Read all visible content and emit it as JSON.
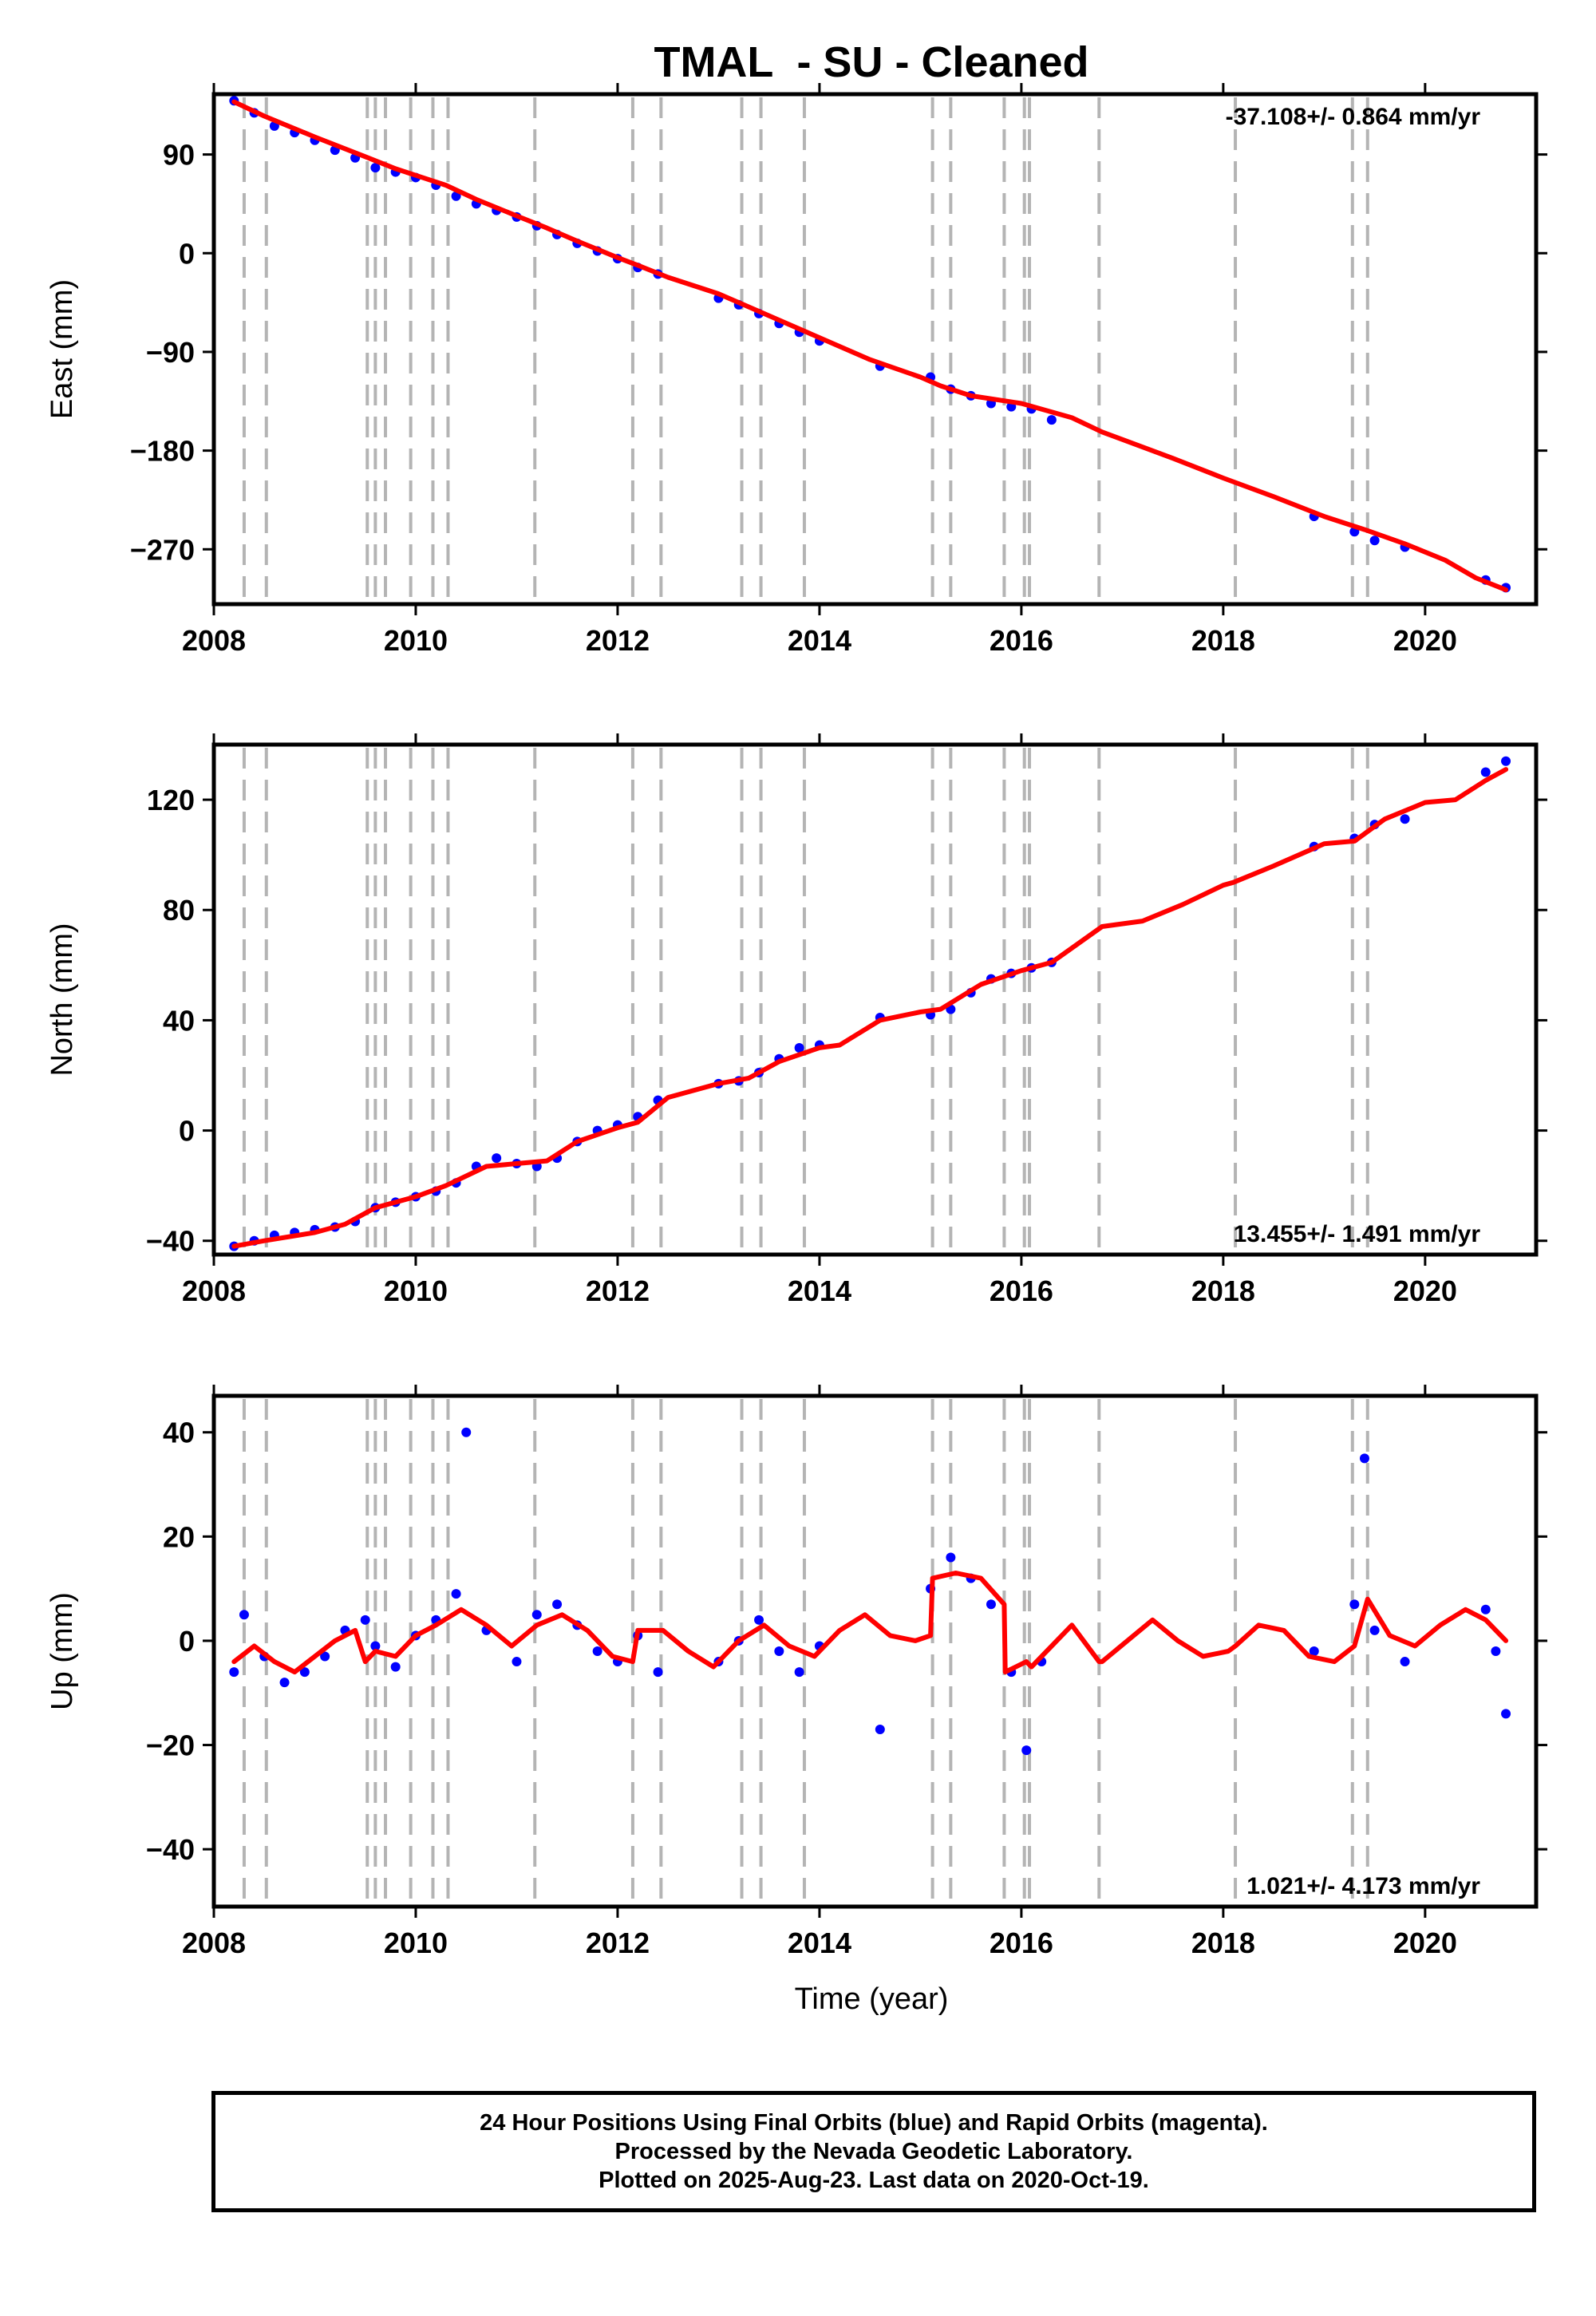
{
  "figure_title": "TMAL  - SU - Cleaned",
  "x_axis_label": "Time (year)",
  "caption": {
    "line1": "24 Hour Positions Using Final Orbits (blue) and Rapid Orbits (magenta).",
    "line2": "Processed by the Nevada Geodetic Laboratory.",
    "line3": "Plotted on 2025-Aug-23. Last data on 2020-Oct-19."
  },
  "colors": {
    "final_orbits": "#0000ff",
    "model_fit": "#ff0000",
    "event_lines": "#b4b4b4",
    "axes": "#000000"
  },
  "event_lines_x": [
    2008.3,
    2008.52,
    2009.52,
    2009.6,
    2009.7,
    2009.95,
    2010.17,
    2010.32,
    2011.18,
    2012.15,
    2012.43,
    2013.23,
    2013.42,
    2013.85,
    2015.12,
    2015.3,
    2015.83,
    2016.03,
    2016.08,
    2016.77,
    2018.12,
    2019.28,
    2019.43
  ],
  "chart_data": [
    {
      "type": "scatter",
      "title": "",
      "xlabel": "",
      "ylabel": "East (mm)",
      "xlim": [
        2008.0,
        2021.1
      ],
      "ylim": [
        -320,
        145
      ],
      "xticks": [
        "2008",
        "2010",
        "2012",
        "2014",
        "2016",
        "2018",
        "2020"
      ],
      "yticks": [
        "90",
        "0",
        "−90",
        "−180",
        "−270"
      ],
      "ytick_values": [
        90,
        0,
        -90,
        -180,
        -270
      ],
      "rate_label": "-37.108+/- 0.864 mm/yr",
      "rate_position": "top-right",
      "grid": false,
      "series": [
        {
          "name": "Final Orbits",
          "style": "points",
          "x": [
            2008.2,
            2008.4,
            2008.6,
            2008.8,
            2009.0,
            2009.2,
            2009.4,
            2009.6,
            2009.8,
            2010.0,
            2010.2,
            2010.4,
            2010.6,
            2010.8,
            2011.0,
            2011.2,
            2011.4,
            2011.6,
            2011.8,
            2012.0,
            2012.2,
            2012.4,
            2013.0,
            2013.2,
            2013.4,
            2013.6,
            2013.8,
            2014.0,
            2014.6,
            2015.1,
            2015.3,
            2015.5,
            2015.7,
            2015.9,
            2016.1,
            2016.3,
            2018.9,
            2019.3,
            2019.5,
            2019.8,
            2020.6,
            2020.8
          ],
          "y": [
            139,
            128,
            116,
            110,
            103,
            94,
            87,
            78,
            74,
            69,
            62,
            52,
            45,
            39,
            33,
            25,
            17,
            9,
            2,
            -5,
            -13,
            -19,
            -41,
            -47,
            -55,
            -64,
            -72,
            -80,
            -103,
            -113,
            -124,
            -130,
            -137,
            -140,
            -142,
            -152,
            -240,
            -254,
            -262,
            -268,
            -298,
            -305
          ]
        },
        {
          "name": "Model",
          "style": "line",
          "x": [
            2008.2,
            2008.5,
            2009.0,
            2009.5,
            2009.8,
            2010.0,
            2010.3,
            2010.6,
            2011.0,
            2011.3,
            2011.6,
            2012.0,
            2012.2,
            2012.5,
            2013.0,
            2013.5,
            2014.0,
            2014.5,
            2015.0,
            2015.2,
            2015.5,
            2016.0,
            2016.5,
            2016.8,
            2017.5,
            2018.0,
            2018.5,
            2019.0,
            2019.4,
            2019.8,
            2020.2,
            2020.5,
            2020.8
          ],
          "y": [
            138,
            125,
            106,
            88,
            77,
            71,
            62,
            49,
            34,
            23,
            11,
            -4,
            -11,
            -22,
            -37,
            -57,
            -77,
            -97,
            -113,
            -121,
            -130,
            -137,
            -150,
            -163,
            -187,
            -205,
            -222,
            -240,
            -252,
            -265,
            -280,
            -296,
            -307
          ]
        }
      ]
    },
    {
      "type": "scatter",
      "title": "",
      "xlabel": "",
      "ylabel": "North (mm)",
      "xlim": [
        2008.0,
        2021.1
      ],
      "ylim": [
        -45,
        140
      ],
      "xticks": [
        "2008",
        "2010",
        "2012",
        "2014",
        "2016",
        "2018",
        "2020"
      ],
      "yticks": [
        "120",
        "80",
        "40",
        "0",
        "−40"
      ],
      "ytick_values": [
        120,
        80,
        40,
        0,
        -40
      ],
      "rate_label": "13.455+/- 1.491 mm/yr",
      "rate_position": "bottom-right",
      "grid": false,
      "series": [
        {
          "name": "Final Orbits",
          "style": "points",
          "x": [
            2008.2,
            2008.4,
            2008.6,
            2008.8,
            2009.0,
            2009.2,
            2009.4,
            2009.6,
            2009.8,
            2010.0,
            2010.2,
            2010.4,
            2010.6,
            2010.8,
            2011.0,
            2011.2,
            2011.4,
            2011.6,
            2011.8,
            2012.0,
            2012.2,
            2012.4,
            2013.0,
            2013.2,
            2013.4,
            2013.6,
            2013.8,
            2014.0,
            2014.6,
            2015.1,
            2015.3,
            2015.5,
            2015.7,
            2015.9,
            2016.1,
            2016.3,
            2018.9,
            2019.3,
            2019.5,
            2019.8,
            2020.6,
            2020.8
          ],
          "y": [
            -42,
            -40,
            -38,
            -37,
            -36,
            -35,
            -33,
            -28,
            -26,
            -24,
            -22,
            -19,
            -13,
            -10,
            -12,
            -13,
            -10,
            -4,
            0,
            2,
            5,
            11,
            17,
            18,
            21,
            26,
            30,
            31,
            41,
            42,
            44,
            50,
            55,
            57,
            59,
            61,
            103,
            106,
            111,
            113,
            130,
            134
          ]
        },
        {
          "name": "Model",
          "style": "line",
          "x": [
            2008.2,
            2008.5,
            2009.0,
            2009.3,
            2009.6,
            2010.0,
            2010.3,
            2010.7,
            2011.0,
            2011.3,
            2011.6,
            2012.0,
            2012.2,
            2012.5,
            2013.0,
            2013.3,
            2013.6,
            2014.0,
            2014.2,
            2014.6,
            2015.0,
            2015.2,
            2015.6,
            2016.0,
            2016.3,
            2016.8,
            2017.2,
            2017.6,
            2018.0,
            2018.1,
            2018.5,
            2019.0,
            2019.3,
            2019.6,
            2020.0,
            2020.3,
            2020.6,
            2020.8
          ],
          "y": [
            -42,
            -40,
            -37,
            -34,
            -28,
            -24,
            -20,
            -13,
            -12,
            -11,
            -4,
            1,
            3,
            12,
            17,
            19,
            25,
            30,
            31,
            40,
            43,
            44,
            53,
            58,
            61,
            74,
            76,
            82,
            89,
            90,
            96,
            104,
            105,
            113,
            119,
            120,
            127,
            131
          ]
        }
      ]
    },
    {
      "type": "scatter",
      "title": "",
      "xlabel": "Time (year)",
      "ylabel": "Up (mm)",
      "xlim": [
        2008.0,
        2021.1
      ],
      "ylim": [
        -51,
        47
      ],
      "xticks": [
        "2008",
        "2010",
        "2012",
        "2014",
        "2016",
        "2018",
        "2020"
      ],
      "yticks": [
        "40",
        "20",
        "0",
        "−20",
        "−40"
      ],
      "ytick_values": [
        40,
        20,
        0,
        -20,
        -40
      ],
      "rate_label": "1.021+/- 4.173 mm/yr",
      "rate_position": "bottom-right",
      "grid": false,
      "series": [
        {
          "name": "Final Orbits",
          "style": "points",
          "x": [
            2008.2,
            2008.3,
            2008.5,
            2008.7,
            2008.9,
            2009.1,
            2009.3,
            2009.5,
            2009.6,
            2009.8,
            2010.0,
            2010.2,
            2010.4,
            2010.5,
            2010.7,
            2011.0,
            2011.2,
            2011.4,
            2011.6,
            2011.8,
            2012.0,
            2012.2,
            2012.4,
            2013.0,
            2013.2,
            2013.4,
            2013.6,
            2013.8,
            2014.0,
            2014.6,
            2015.1,
            2015.3,
            2015.5,
            2015.7,
            2015.9,
            2016.05,
            2016.2,
            2018.9,
            2019.3,
            2019.4,
            2019.5,
            2019.8,
            2020.6,
            2020.7,
            2020.8
          ],
          "y": [
            -6,
            5,
            -3,
            -8,
            -6,
            -3,
            2,
            4,
            -1,
            -5,
            1,
            4,
            9,
            40,
            2,
            -4,
            5,
            7,
            3,
            -2,
            -4,
            1,
            -6,
            -4,
            0,
            4,
            -2,
            -6,
            -1,
            -17,
            10,
            16,
            12,
            7,
            -6,
            -21,
            -4,
            -2,
            7,
            35,
            2,
            -4,
            6,
            -2,
            -14
          ]
        },
        {
          "name": "Model",
          "style": "line",
          "x": [
            2008.2,
            2008.4,
            2008.6,
            2008.8,
            2009.0,
            2009.2,
            2009.4,
            2009.5,
            2009.6,
            2009.8,
            2010.0,
            2010.2,
            2010.45,
            2010.7,
            2010.95,
            2011.2,
            2011.45,
            2011.7,
            2011.95,
            2012.15,
            2012.2,
            2012.45,
            2012.7,
            2012.95,
            2013.2,
            2013.45,
            2013.7,
            2013.95,
            2014.2,
            2014.45,
            2014.7,
            2014.95,
            2015.1,
            2015.12,
            2015.35,
            2015.6,
            2015.83,
            2015.84,
            2016.05,
            2016.1,
            2016.3,
            2016.5,
            2016.77,
            2016.8,
            2017.05,
            2017.3,
            2017.55,
            2017.8,
            2018.05,
            2018.12,
            2018.35,
            2018.6,
            2018.85,
            2019.1,
            2019.3,
            2019.43,
            2019.65,
            2019.9,
            2020.15,
            2020.4,
            2020.6,
            2020.8
          ],
          "y": [
            -4,
            -1,
            -4,
            -6,
            -3,
            0,
            2,
            -4,
            -2,
            -3,
            1,
            3,
            6,
            3,
            -1,
            3,
            5,
            2,
            -3,
            -4,
            2,
            2,
            -2,
            -5,
            0,
            3,
            -1,
            -3,
            2,
            5,
            1,
            0,
            1,
            12,
            13,
            12,
            7,
            -6,
            -4,
            -5,
            -1,
            3,
            -4,
            -4,
            0,
            4,
            0,
            -3,
            -2,
            -1,
            3,
            2,
            -3,
            -4,
            -1,
            8,
            1,
            -1,
            3,
            6,
            4,
            0
          ]
        }
      ]
    }
  ]
}
